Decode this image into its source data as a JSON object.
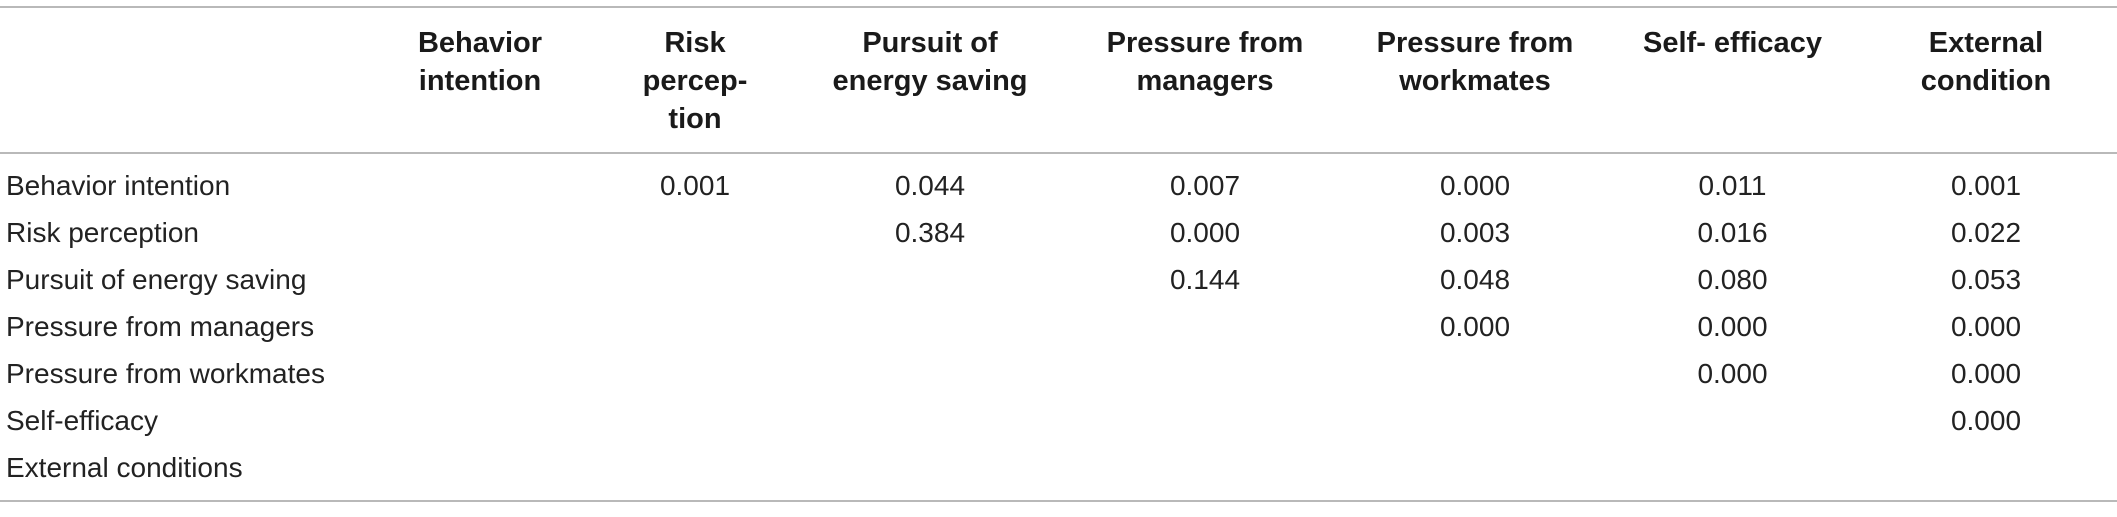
{
  "table": {
    "columns": [
      "",
      "Behavior intention",
      "Risk percep- tion",
      "Pursuit of energy saving",
      "Pressure from managers",
      "Pressure from workmates",
      "Self- efficacy",
      "External condition"
    ],
    "column_lines": [
      [],
      [
        "Behavior",
        "intention"
      ],
      [
        "Risk",
        "percep-",
        "tion"
      ],
      [
        "Pursuit of",
        "energy saving"
      ],
      [
        "Pressure from",
        "managers"
      ],
      [
        "Pressure from",
        "workmates"
      ],
      [
        "Self- efficacy"
      ],
      [
        "External",
        "condition"
      ]
    ],
    "rows": [
      [
        "Behavior intention",
        "",
        "0.001",
        "0.044",
        "0.007",
        "0.000",
        "0.011",
        "0.001"
      ],
      [
        "Risk perception",
        "",
        "",
        "0.384",
        "0.000",
        "0.003",
        "0.016",
        "0.022"
      ],
      [
        "Pursuit of energy saving",
        "",
        "",
        "",
        "0.144",
        "0.048",
        "0.080",
        "0.053"
      ],
      [
        "Pressure from managers",
        "",
        "",
        "",
        "",
        "0.000",
        "0.000",
        "0.000"
      ],
      [
        "Pressure from workmates",
        "",
        "",
        "",
        "",
        "",
        "0.000",
        "0.000"
      ],
      [
        "Self-efficacy",
        "",
        "",
        "",
        "",
        "",
        "",
        "0.000"
      ],
      [
        "External conditions",
        "",
        "",
        "",
        "",
        "",
        "",
        ""
      ]
    ]
  }
}
